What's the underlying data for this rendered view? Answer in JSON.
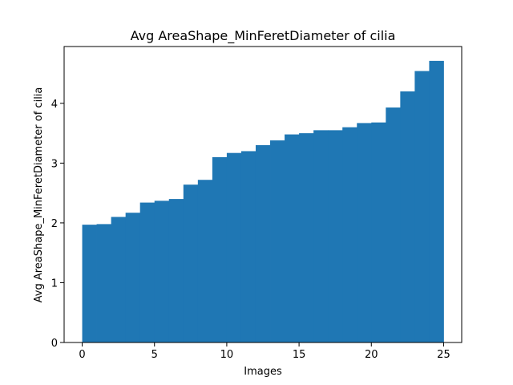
{
  "chart_data": {
    "type": "bar",
    "title": "Avg AreaShape_MinFeretDiameter of cilia",
    "xlabel": "Images",
    "ylabel": "Avg AreaShape_MinFeretDiameter of cilia",
    "x": [
      0,
      1,
      2,
      3,
      4,
      5,
      6,
      7,
      8,
      9,
      10,
      11,
      12,
      13,
      14,
      15,
      16,
      17,
      18,
      19,
      20,
      21,
      22,
      23,
      24
    ],
    "values": [
      1.97,
      1.98,
      2.1,
      2.17,
      2.34,
      2.37,
      2.4,
      2.64,
      2.72,
      3.1,
      3.17,
      3.2,
      3.3,
      3.38,
      3.48,
      3.5,
      3.55,
      3.55,
      3.6,
      3.67,
      3.68,
      3.93,
      4.2,
      4.54,
      4.71
    ],
    "bar_width": 1,
    "xlim": [
      -1.25,
      26.25
    ],
    "ylim": [
      0,
      4.95
    ],
    "xticks": [
      0,
      5,
      10,
      15,
      20,
      25
    ],
    "yticks": [
      0,
      1,
      2,
      3,
      4
    ],
    "color": "#1f77b4",
    "grid": false,
    "legend": "none"
  }
}
